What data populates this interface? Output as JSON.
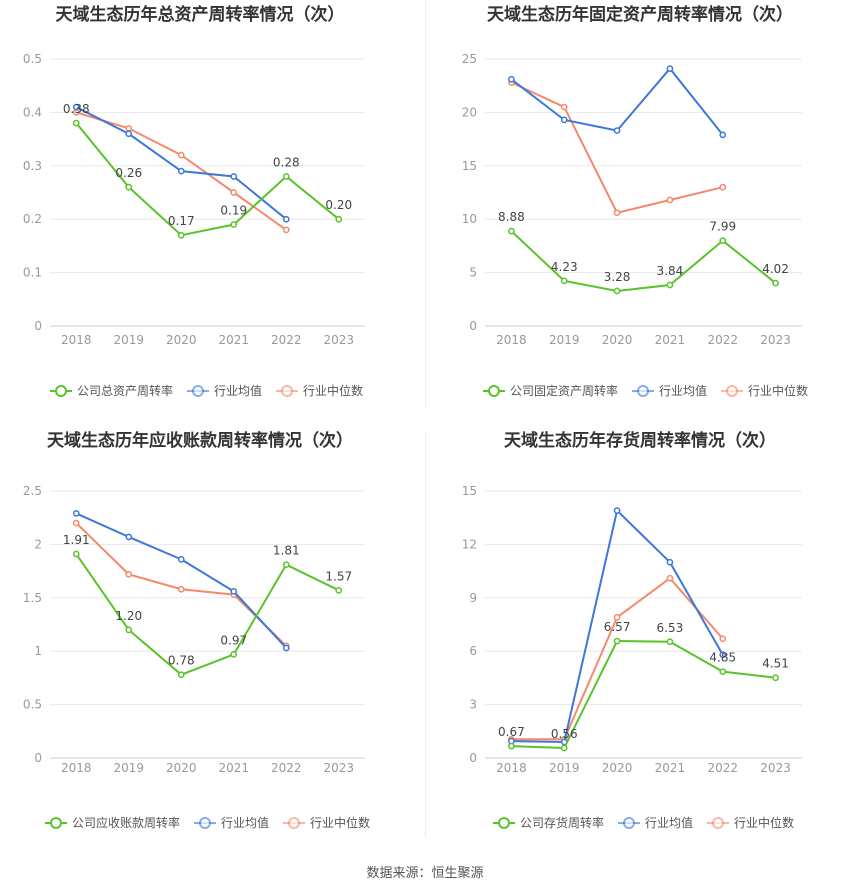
{
  "source": "数据来源：恒生聚源",
  "legend_common": [
    "行业均值",
    "行业中位数"
  ],
  "colors": {
    "company": "#5ac32b",
    "avg": "#3d78d8",
    "median": "#f4896b",
    "grid": "#e8e8e8"
  },
  "chart_data": [
    {
      "type": "line",
      "title": "天域生态历年总资产周转率情况（次）",
      "categories": [
        "2018",
        "2019",
        "2020",
        "2021",
        "2022",
        "2023"
      ],
      "ylim": [
        0,
        0.5
      ],
      "yticks": [
        "0",
        "0.1",
        "0.2",
        "0.3",
        "0.4",
        "0.5"
      ],
      "series": [
        {
          "name": "公司总资产周转率",
          "values": [
            0.38,
            0.26,
            0.17,
            0.19,
            0.28,
            0.2
          ],
          "labels": [
            "0.38",
            "0.26",
            "0.17",
            "0.19",
            "0.28",
            "0.20"
          ]
        },
        {
          "name": "行业均值",
          "values": [
            0.41,
            0.36,
            0.29,
            0.28,
            0.2,
            null
          ]
        },
        {
          "name": "行业中位数",
          "values": [
            0.4,
            0.37,
            0.32,
            0.25,
            0.18,
            null
          ]
        }
      ],
      "legend_position": "bottom",
      "grid": true
    },
    {
      "type": "line",
      "title": "天域生态历年固定资产周转率情况（次）",
      "categories": [
        "2018",
        "2019",
        "2020",
        "2021",
        "2022",
        "2023"
      ],
      "ylim": [
        0,
        25
      ],
      "yticks": [
        "0",
        "5",
        "10",
        "15",
        "20",
        "25"
      ],
      "series": [
        {
          "name": "公司固定资产周转率",
          "values": [
            8.88,
            4.23,
            3.28,
            3.84,
            7.99,
            4.02
          ],
          "labels": [
            "8.88",
            "4.23",
            "3.28",
            "3.84",
            "7.99",
            "4.02"
          ]
        },
        {
          "name": "行业均值",
          "values": [
            23.1,
            19.3,
            18.3,
            24.1,
            17.9,
            null
          ]
        },
        {
          "name": "行业中位数",
          "values": [
            22.8,
            20.5,
            10.6,
            11.8,
            13.0,
            null
          ]
        }
      ],
      "legend_position": "bottom",
      "grid": true
    },
    {
      "type": "line",
      "title": "天域生态历年应收账款周转率情况（次）",
      "categories": [
        "2018",
        "2019",
        "2020",
        "2021",
        "2022",
        "2023"
      ],
      "ylim": [
        0,
        2.5
      ],
      "yticks": [
        "0",
        "0.5",
        "1",
        "1.5",
        "2",
        "2.5"
      ],
      "series": [
        {
          "name": "公司应收账款周转率",
          "values": [
            1.91,
            1.2,
            0.78,
            0.97,
            1.81,
            1.57
          ],
          "labels": [
            "1.91",
            "1.20",
            "0.78",
            "0.97",
            "1.81",
            "1.57"
          ]
        },
        {
          "name": "行业均值",
          "values": [
            2.29,
            2.07,
            1.86,
            1.56,
            1.03,
            null
          ]
        },
        {
          "name": "行业中位数",
          "values": [
            2.2,
            1.72,
            1.58,
            1.53,
            1.05,
            null
          ]
        }
      ],
      "legend_position": "bottom",
      "grid": true
    },
    {
      "type": "line",
      "title": "天域生态历年存货周转率情况（次）",
      "categories": [
        "2018",
        "2019",
        "2020",
        "2021",
        "2022",
        "2023"
      ],
      "ylim": [
        0,
        15
      ],
      "yticks": [
        "0",
        "3",
        "6",
        "9",
        "12",
        "15"
      ],
      "series": [
        {
          "name": "公司存货周转率",
          "values": [
            0.67,
            0.56,
            6.57,
            6.53,
            4.85,
            4.51
          ],
          "labels": [
            "0.67",
            "0.56",
            "6.57",
            "6.53",
            "4.85",
            "4.51"
          ]
        },
        {
          "name": "行业均值",
          "values": [
            0.95,
            0.9,
            13.9,
            11.0,
            5.8,
            null
          ]
        },
        {
          "name": "行业中位数",
          "values": [
            1.05,
            1.05,
            7.9,
            10.1,
            6.7,
            null
          ]
        }
      ],
      "legend_position": "bottom",
      "grid": true
    }
  ]
}
